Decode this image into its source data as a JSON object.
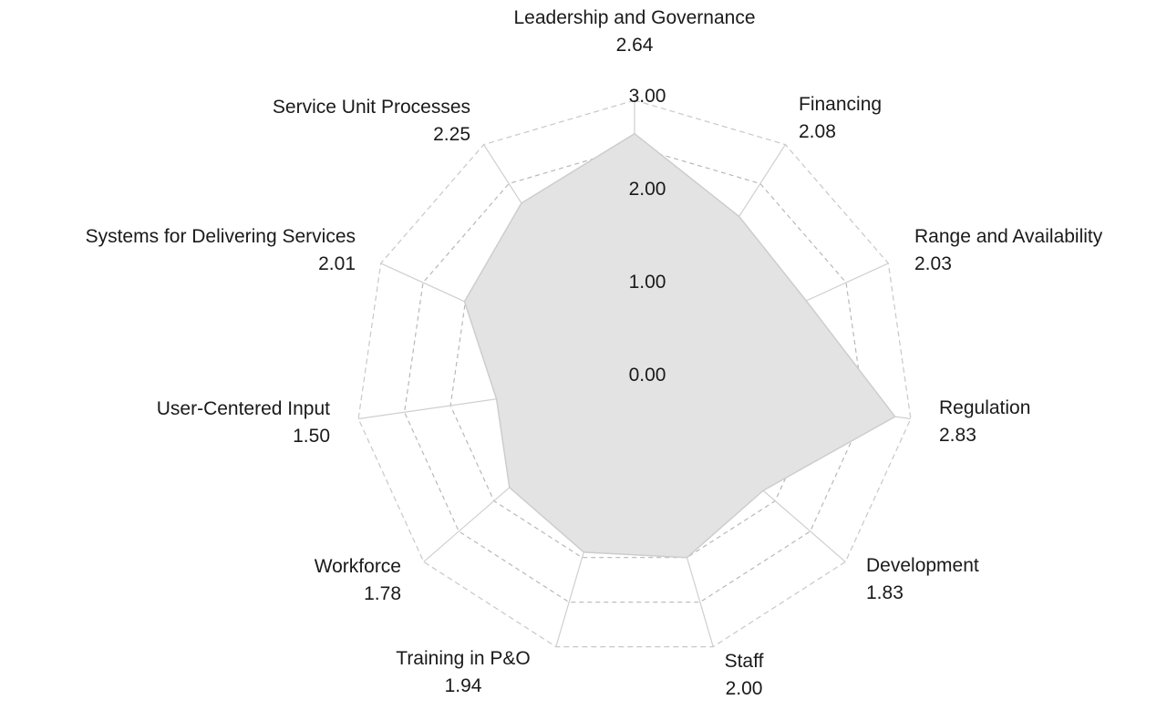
{
  "chart_data": {
    "type": "radar",
    "title": "",
    "categories": [
      "Leadership and Governance",
      "Financing",
      "Range and Availability",
      "Regulation",
      "Development",
      "Staff",
      "Training in P&O",
      "Workforce",
      "User-Centered Input",
      "Systems for Delivering Services",
      "Service Unit Processes"
    ],
    "value_labels": [
      "2.64",
      "2.08",
      "2.03",
      "2.83",
      "1.83",
      "2.00",
      "1.94",
      "1.78",
      "1.50",
      "2.01",
      "2.25"
    ],
    "values": [
      2.64,
      2.08,
      2.03,
      2.83,
      1.83,
      2.0,
      1.94,
      1.78,
      1.5,
      2.01,
      2.25
    ],
    "rlim": [
      0,
      3
    ],
    "ticks": [
      0,
      1,
      2,
      3
    ],
    "tick_labels": [
      "0.00",
      "1.00",
      "2.00",
      "3.00"
    ],
    "grid": true,
    "colors": {
      "fill": "#e3e3e3",
      "outline": "#cdcdcd",
      "grid": "#b8b8b8",
      "text": "#1a1a1a"
    }
  }
}
